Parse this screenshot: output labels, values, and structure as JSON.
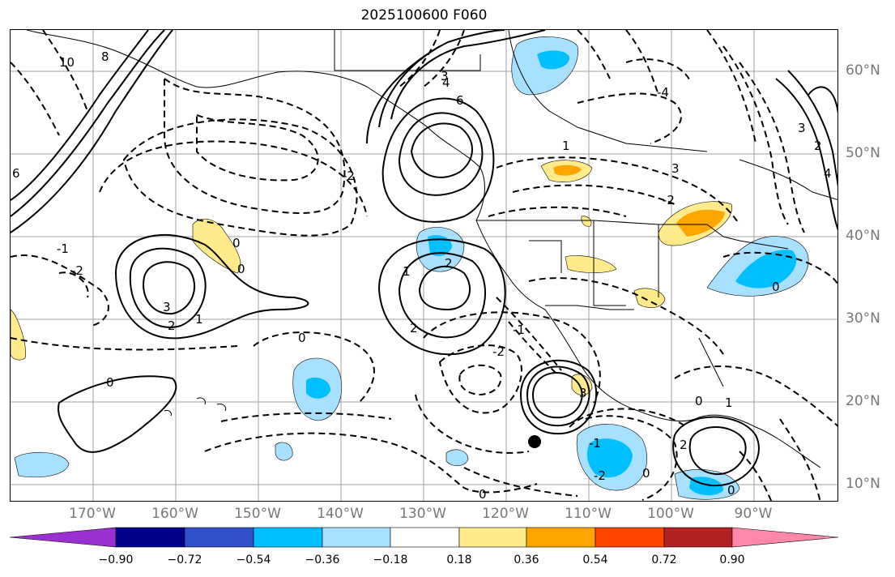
{
  "title": "2025100600 F060",
  "lon_labels": [
    "170°W",
    "160°W",
    "150°W",
    "140°W",
    "130°W",
    "120°W",
    "110°W",
    "100°W",
    "90°W"
  ],
  "lat_labels": [
    "60°N",
    "50°N",
    "40°N",
    "30°N",
    "20°N",
    "10°N"
  ],
  "contour_labels": [
    "10",
    "8",
    "6",
    "4",
    "3",
    "2",
    "1",
    "0",
    "-1",
    "-2",
    "-3",
    "-4"
  ],
  "colorbar": {
    "ticks": [
      "−0.90",
      "−0.72",
      "−0.54",
      "−0.36",
      "−0.18",
      "0.18",
      "0.36",
      "0.54",
      "0.72",
      "0.90"
    ],
    "colors": [
      "#9b30d0",
      "#000088",
      "#3050c8",
      "#00bfff",
      "#a8e0ff",
      "#ffffff",
      "#ffeb8a",
      "#ffa500",
      "#ff4500",
      "#b22222",
      "#ff88aa"
    ]
  },
  "colors": {
    "solid_contour": "#000000",
    "dashed_contour": "#000000",
    "grid": "#a0a0a0",
    "axis_label": "#777777"
  },
  "markers": [
    {
      "type": "filled-circle",
      "lon": -116.5,
      "lat": 15.3
    }
  ]
}
